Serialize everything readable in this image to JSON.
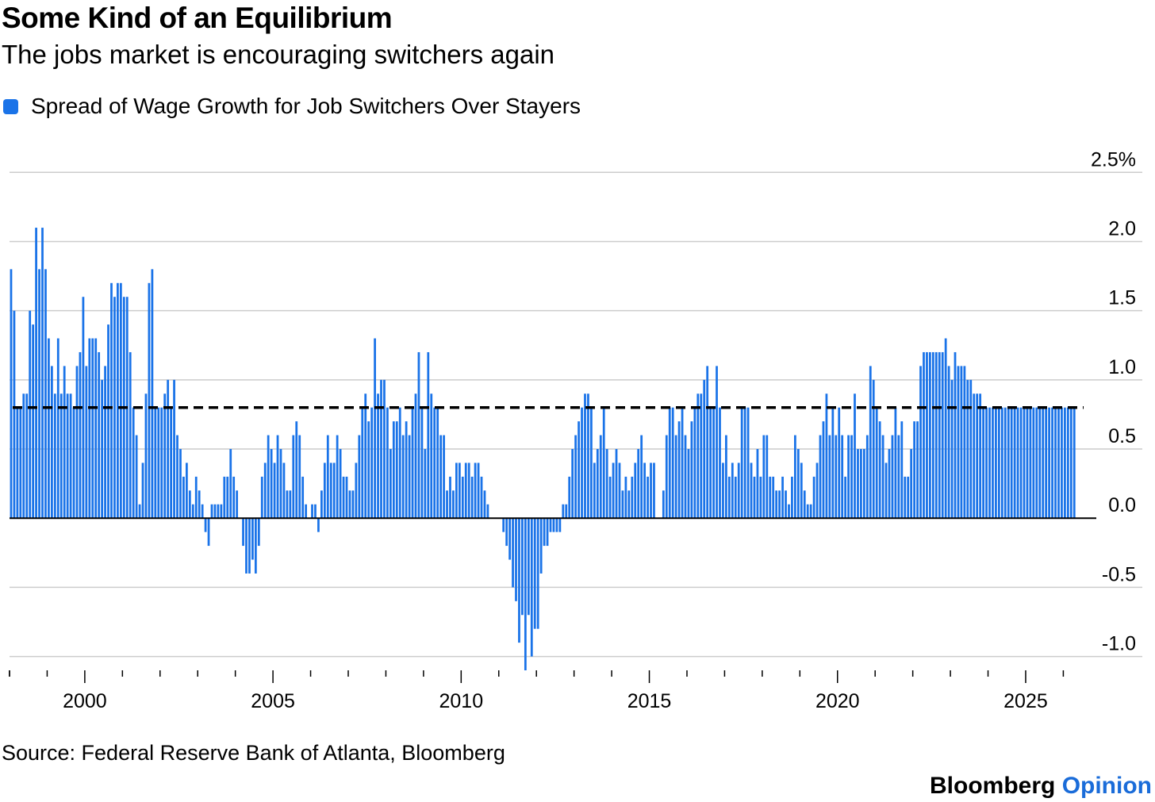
{
  "header": {
    "title": "Some Kind of an Equilibrium",
    "subtitle": "The jobs market is encouraging switchers again"
  },
  "footer": {
    "source": "Source: Federal Reserve Bank of Atlanta, Bloomberg",
    "brand_main": "Bloomberg",
    "brand_accent": "Opinion"
  },
  "colors": {
    "bar": "#1a73e8",
    "accent": "#1a6cd9",
    "grid": "#cccccc",
    "reference_line": "#000000"
  },
  "chart_data": {
    "type": "bar",
    "title": "Some Kind of an Equilibrium",
    "subtitle": "The jobs market is encouraging switchers again",
    "series": [
      {
        "name": "Spread of Wage Growth for Job Switchers Over Stayers",
        "start": "1998-01",
        "frequency": "monthly",
        "values": [
          1.8,
          1.5,
          0.8,
          0.8,
          0.9,
          0.9,
          1.5,
          1.4,
          2.1,
          1.8,
          2.1,
          1.8,
          1.3,
          1.1,
          0.9,
          1.3,
          0.9,
          1.1,
          0.9,
          0.9,
          0.8,
          1.1,
          1.2,
          1.6,
          1.1,
          1.3,
          1.3,
          1.3,
          1.2,
          1.0,
          1.1,
          1.4,
          1.7,
          1.6,
          1.7,
          1.7,
          1.6,
          1.6,
          1.2,
          0.8,
          0.6,
          0.1,
          0.4,
          0.9,
          1.7,
          1.8,
          0.8,
          0.8,
          0.8,
          0.9,
          1.0,
          0.8,
          1.0,
          0.6,
          0.5,
          0.3,
          0.4,
          0.2,
          0.1,
          0.3,
          0.2,
          0.1,
          -0.1,
          -0.2,
          0.1,
          0.1,
          0.1,
          0.1,
          0.3,
          0.3,
          0.5,
          0.3,
          0.2,
          0.0,
          -0.2,
          -0.4,
          -0.4,
          -0.3,
          -0.4,
          -0.2,
          0.3,
          0.4,
          0.6,
          0.5,
          0.4,
          0.6,
          0.5,
          0.4,
          0.2,
          0.2,
          0.6,
          0.7,
          0.6,
          0.3,
          0.1,
          0.0,
          0.1,
          0.1,
          -0.1,
          0.2,
          0.4,
          0.6,
          0.4,
          0.4,
          0.6,
          0.5,
          0.3,
          0.3,
          0.2,
          0.2,
          0.4,
          0.6,
          0.8,
          0.9,
          0.7,
          0.8,
          1.3,
          0.9,
          1.0,
          1.0,
          0.8,
          0.5,
          0.7,
          0.7,
          0.8,
          0.6,
          0.7,
          0.6,
          0.8,
          0.9,
          1.2,
          0.8,
          0.5,
          1.2,
          0.9,
          0.8,
          0.8,
          0.6,
          0.6,
          0.2,
          0.3,
          0.2,
          0.4,
          0.4,
          0.3,
          0.4,
          0.4,
          0.3,
          0.4,
          0.4,
          0.3,
          0.2,
          0.1,
          0.0,
          0.0,
          0.0,
          0.0,
          -0.1,
          -0.2,
          -0.3,
          -0.5,
          -0.6,
          -0.9,
          -0.7,
          -1.1,
          -0.7,
          -1.0,
          -0.8,
          -0.8,
          -0.4,
          -0.2,
          -0.2,
          -0.1,
          -0.1,
          -0.1,
          -0.1,
          0.1,
          0.1,
          0.3,
          0.5,
          0.6,
          0.7,
          0.8,
          0.9,
          0.9,
          0.8,
          0.4,
          0.5,
          0.6,
          0.8,
          0.5,
          0.3,
          0.4,
          0.5,
          0.4,
          0.2,
          0.3,
          0.2,
          0.3,
          0.4,
          0.5,
          0.6,
          0.4,
          0.3,
          0.4,
          0.4,
          0.0,
          0.0,
          0.2,
          0.6,
          0.8,
          0.8,
          0.6,
          0.7,
          0.8,
          0.6,
          0.5,
          0.7,
          0.8,
          0.9,
          0.9,
          1.0,
          1.1,
          0.8,
          0.8,
          1.1,
          0.8,
          0.4,
          0.6,
          0.3,
          0.4,
          0.3,
          0.4,
          0.8,
          0.8,
          0.8,
          0.4,
          0.3,
          0.5,
          0.3,
          0.6,
          0.6,
          0.3,
          0.3,
          0.2,
          0.2,
          0.3,
          0.2,
          0.1,
          0.3,
          0.6,
          0.5,
          0.4,
          0.2,
          0.1,
          0.1,
          0.3,
          0.4,
          0.6,
          0.7,
          0.9,
          0.6,
          0.8,
          0.6,
          0.8,
          0.6,
          0.3,
          0.6,
          0.6,
          0.9,
          0.5,
          0.5,
          0.5,
          0.6,
          1.1,
          1.0,
          0.8,
          0.7,
          0.6,
          0.4,
          0.5,
          0.6,
          0.8,
          0.6,
          0.7,
          0.3,
          0.3,
          0.5,
          0.7,
          0.7,
          1.1,
          1.2,
          1.2,
          1.2,
          1.2,
          1.2,
          1.2,
          1.2,
          1.3,
          1.1,
          1.0,
          1.2,
          1.1,
          1.1,
          1.1,
          1.0,
          1.0,
          0.9,
          0.9,
          0.9,
          0.8,
          0.8,
          0.8,
          0.8,
          0.8,
          0.8,
          0.8,
          0.8,
          0.8,
          0.8,
          0.8,
          0.8,
          0.8,
          0.8,
          0.8,
          0.8,
          0.8,
          0.8,
          0.8,
          0.8,
          0.8,
          0.8,
          0.8,
          0.8,
          0.8,
          0.8,
          0.8,
          0.8,
          0.8,
          0.8
        ]
      }
    ],
    "ylim": [
      -1.1,
      2.8
    ],
    "yticks": [
      -1.0,
      -0.5,
      0.0,
      0.5,
      1.0,
      1.5,
      2.0,
      2.5
    ],
    "ytick_labels": [
      "-1.0",
      "-0.5",
      "0.0",
      "0.5",
      "1.0",
      "1.5",
      "2.0",
      "2.5%"
    ],
    "xlim": [
      1998.0,
      2026.75
    ],
    "xticks": [
      2000,
      2005,
      2010,
      2015,
      2020,
      2025
    ],
    "xtick_labels": [
      "2000",
      "2005",
      "2010",
      "2015",
      "2020",
      "2025"
    ],
    "reference_line": {
      "value": 0.8,
      "style": "dashed"
    },
    "grid": true,
    "legend": "top-left",
    "y_axis_side": "right"
  }
}
